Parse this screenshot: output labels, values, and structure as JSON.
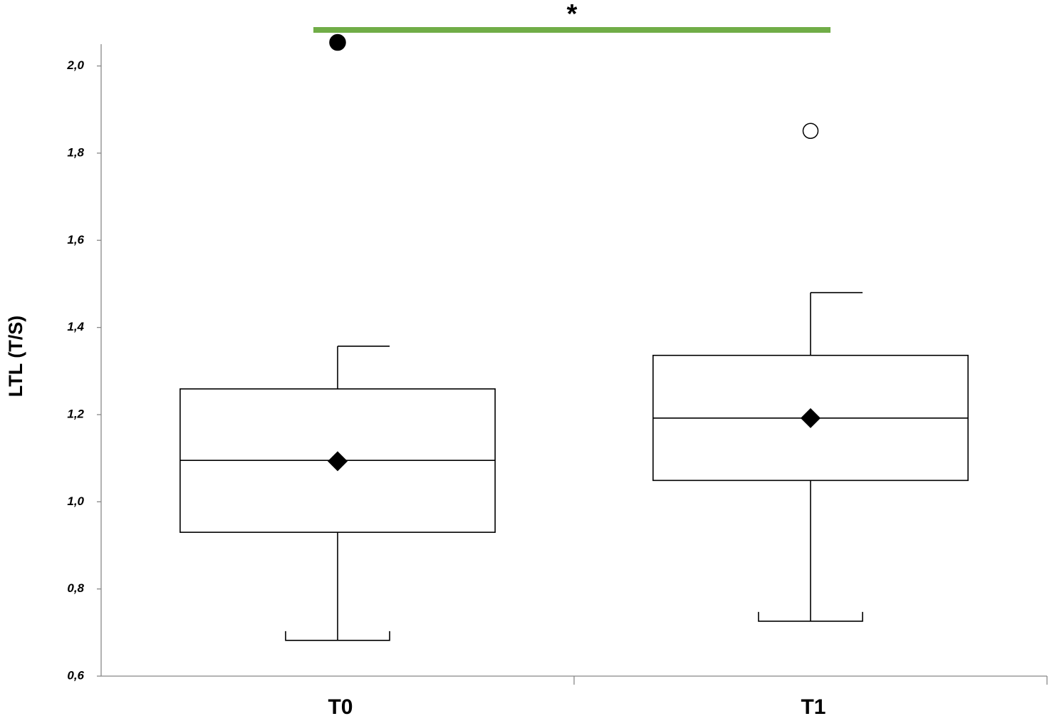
{
  "chart_data": {
    "type": "box",
    "y_label": "LTL (T/S)",
    "categories": [
      "T0",
      "T1"
    ],
    "boxes": [
      {
        "min": 0.682,
        "q1": 0.93,
        "median": 1.095,
        "q3": 1.259,
        "max": 1.357,
        "mean": 1.093,
        "outliers": [
          2.054
        ],
        "outlier_filled": true
      },
      {
        "min": 0.726,
        "q1": 1.049,
        "median": 1.192,
        "q3": 1.336,
        "max": 1.48,
        "mean": 1.192,
        "outliers": [
          1.851
        ],
        "outlier_filled": false
      }
    ],
    "significance": {
      "text": "*",
      "from": 0,
      "to": 1,
      "color": "#70ad47"
    },
    "ylim": [
      0.6,
      2.05
    ],
    "yticks": [
      {
        "value": 0.6,
        "label": "0,6"
      },
      {
        "value": 0.8,
        "label": "0,8"
      },
      {
        "value": 1.0,
        "label": "1,0"
      },
      {
        "value": 1.2,
        "label": "1,2"
      },
      {
        "value": 1.4,
        "label": "1,4"
      },
      {
        "value": 1.6,
        "label": "1,6"
      },
      {
        "value": 1.8,
        "label": "1,8"
      },
      {
        "value": 2.0,
        "label": "2,0"
      }
    ],
    "color": "#000000"
  }
}
